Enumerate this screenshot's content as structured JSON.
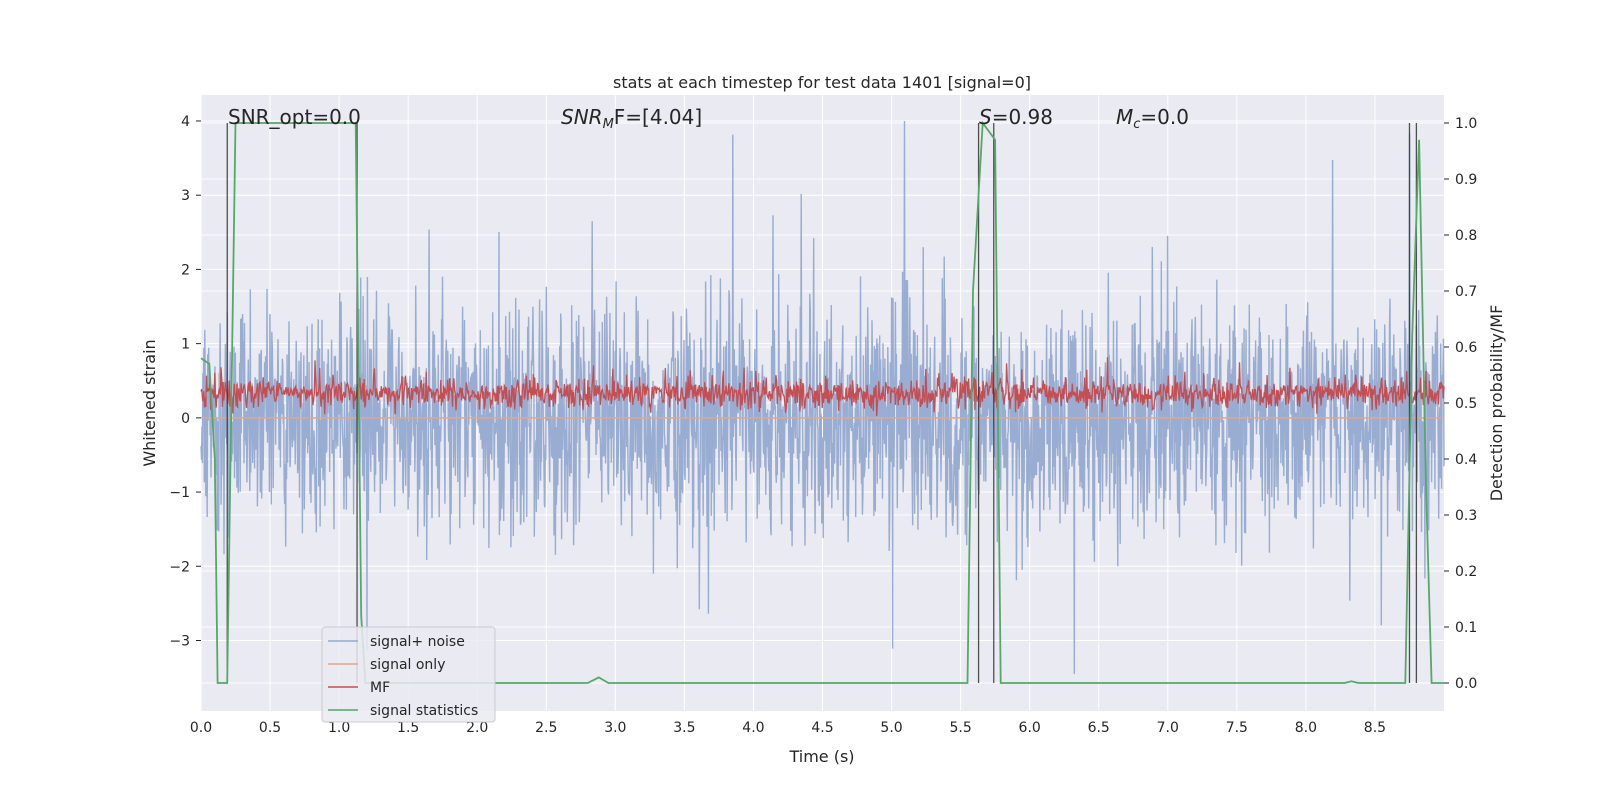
{
  "chart_data": {
    "type": "line",
    "title": "stats at each timestep for test data 1401 [signal=0]",
    "xlabel": "Time (s)",
    "ylabel": "Whitened strain",
    "y2label": "Detection probability/MF",
    "xlim": [
      0.0,
      9.0
    ],
    "ylim": [
      -3.95,
      4.35
    ],
    "y2lim": [
      -0.05,
      1.05
    ],
    "xticks": [
      "0.0",
      "0.5",
      "1.0",
      "1.5",
      "2.0",
      "2.5",
      "3.0",
      "3.5",
      "4.0",
      "4.5",
      "5.0",
      "5.5",
      "6.0",
      "6.5",
      "7.0",
      "7.5",
      "8.0",
      "8.5"
    ],
    "yticks": [
      "4",
      "3",
      "2",
      "1",
      "0",
      "−1",
      "−2",
      "−3"
    ],
    "y2ticks": [
      "1.0",
      "0.9",
      "0.8",
      "0.7",
      "0.6",
      "0.5",
      "0.4",
      "0.3",
      "0.2",
      "0.1",
      "0.0"
    ],
    "grid": true,
    "legend_position": "lower-left",
    "annotations": {
      "snr_opt": "SNR_opt=0.0",
      "snr_mf_base": "SNR",
      "snr_mf_sub": "M",
      "snr_mf_rest": "F=[4.04]",
      "s_base": "S",
      "s_rest": "=0.98",
      "mc_base": "M",
      "mc_sub": "c",
      "mc_rest": "=0.0"
    },
    "series": [
      {
        "name": "signal+ noise",
        "color": "#95a9cf",
        "axis": "left",
        "note": "dense noise, approx. range -3.6 to 4.0 whitened strain"
      },
      {
        "name": "signal only",
        "color": "#e8a582",
        "axis": "left",
        "x": [
          0.0,
          9.0
        ],
        "y": [
          0.0,
          0.0
        ]
      },
      {
        "name": "MF",
        "color": "#c44e52",
        "axis": "left",
        "note": "dense trace, approx. range 0.0 to 1.0 whitened strain"
      },
      {
        "name": "signal statistics",
        "color": "#55a868",
        "axis": "right",
        "x": [
          0.0,
          0.06,
          0.1,
          0.12,
          0.19,
          0.25,
          0.3,
          0.7,
          1.0,
          1.12,
          1.16,
          1.19,
          1.25,
          2.5,
          2.8,
          2.88,
          2.95,
          3.5,
          5.0,
          5.55,
          5.59,
          5.66,
          5.72,
          5.75,
          5.79,
          6.5,
          7.5,
          8.28,
          8.33,
          8.38,
          8.6,
          8.72,
          8.77,
          8.82,
          8.87,
          8.91,
          8.96,
          9.0
        ],
        "y": [
          0.58,
          0.57,
          0.4,
          0.0,
          0.0,
          1.0,
          1.0,
          1.0,
          1.0,
          1.0,
          0.12,
          0.0,
          0.0,
          0.0,
          0.0,
          0.01,
          0.0,
          0.0,
          0.0,
          0.0,
          0.7,
          1.0,
          0.98,
          0.97,
          0.0,
          0.0,
          0.0,
          0.0,
          0.003,
          0.0,
          0.0,
          0.0,
          0.62,
          0.97,
          0.35,
          0.0,
          0.0,
          0.0
        ]
      }
    ],
    "vertical_lines": [
      0.19,
      1.13,
      5.63,
      5.74,
      8.75,
      8.8
    ]
  }
}
